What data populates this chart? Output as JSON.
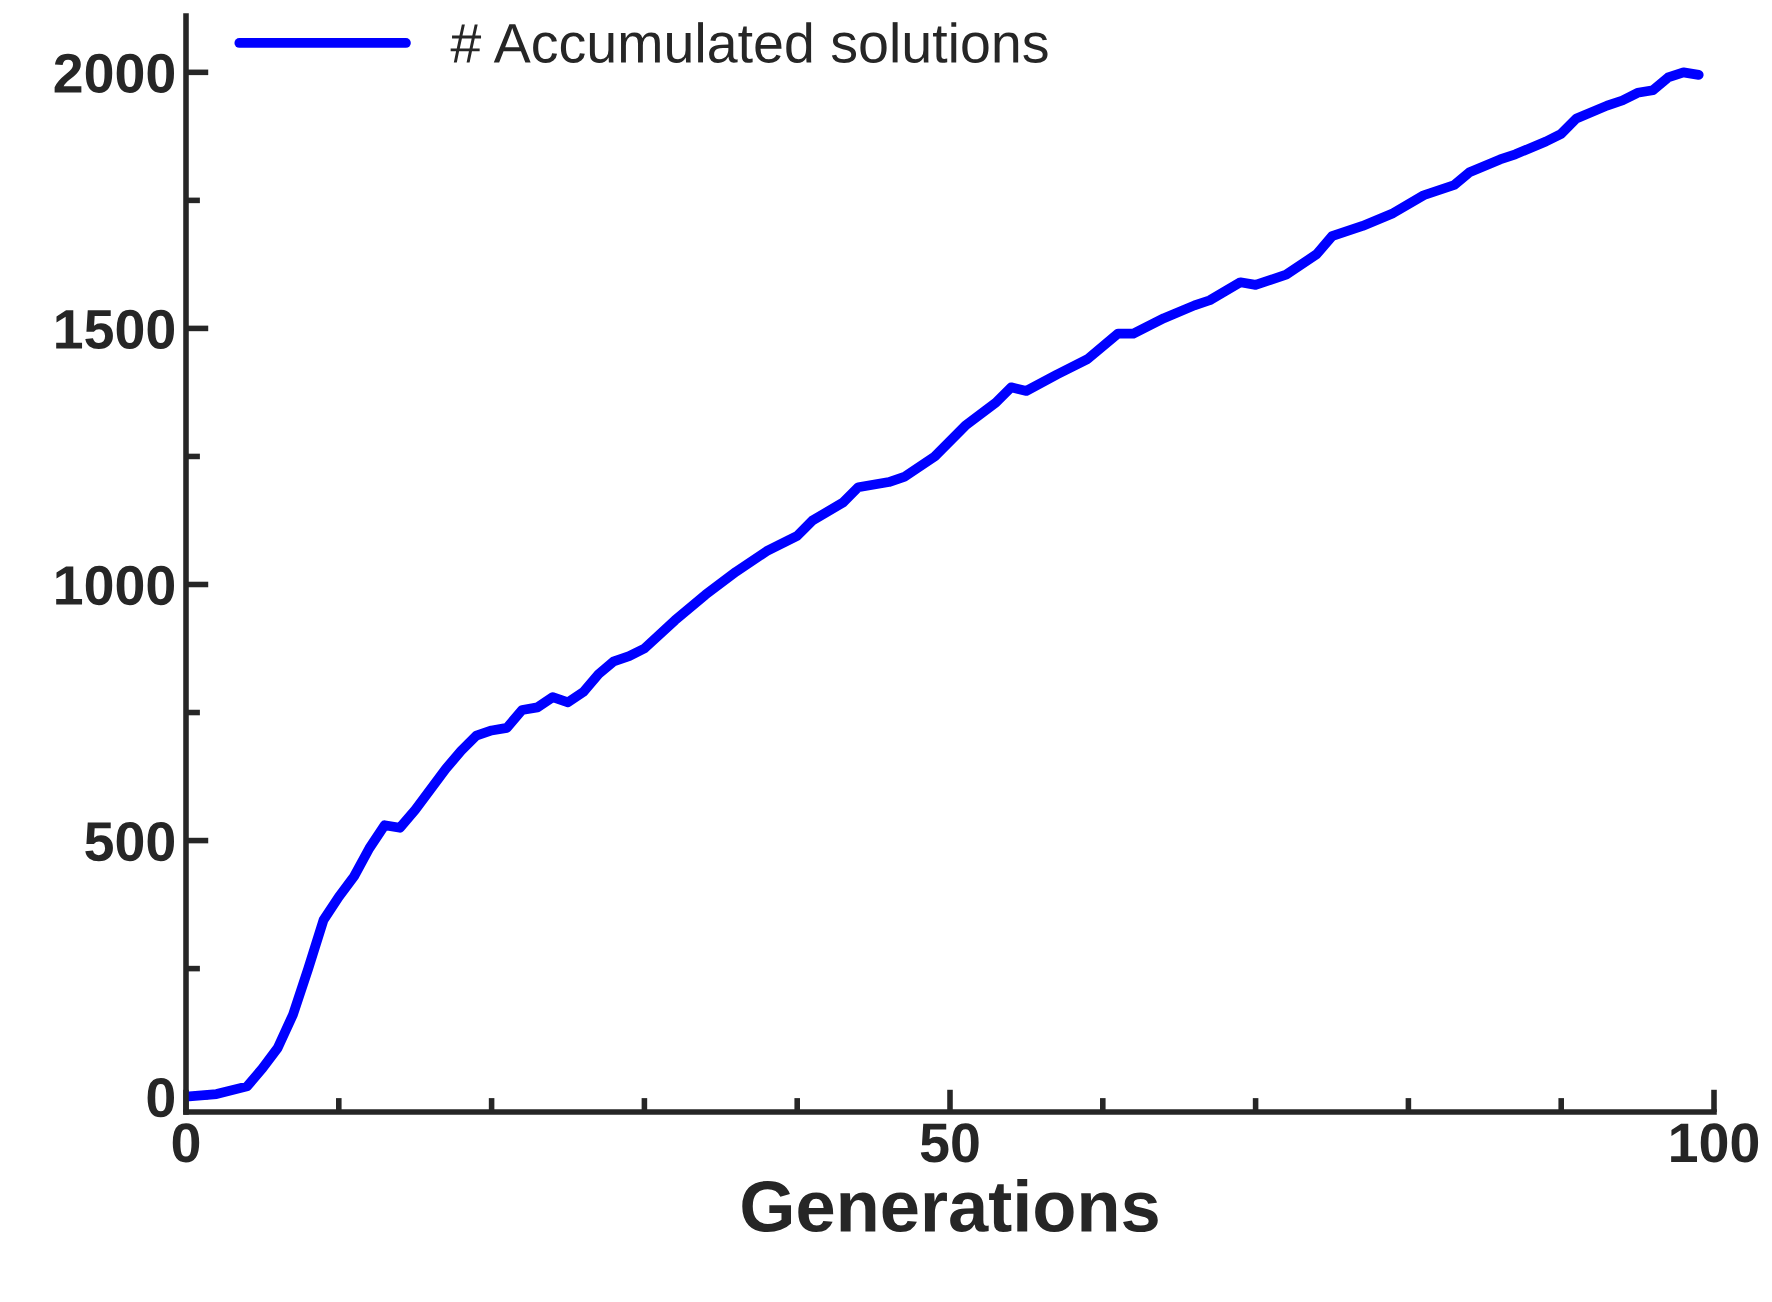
{
  "chart_data": {
    "type": "line",
    "xlabel": "Generations",
    "xlim": [
      0,
      100
    ],
    "xticks": [
      0,
      50,
      100
    ],
    "ylim": [
      -30,
      2110
    ],
    "yticks": [
      0,
      500,
      1000,
      1500,
      2000
    ],
    "legend": "top",
    "grid": false,
    "marker": "none",
    "line_style": "solid",
    "series": [
      {
        "name": "# Accumulated solutions",
        "color": "#0000ff",
        "x": [
          0,
          2,
          4,
          5,
          6,
          7,
          8,
          9,
          10,
          11,
          12,
          13,
          14,
          15,
          16,
          17,
          18,
          19,
          20,
          21,
          22,
          23,
          24,
          25,
          26,
          27,
          28,
          29,
          30,
          32,
          34,
          36,
          38,
          40,
          41,
          43,
          44,
          46,
          47,
          49,
          51,
          53,
          54,
          55,
          57,
          59,
          61,
          62,
          64,
          66,
          67,
          69,
          70,
          72,
          74,
          75,
          77,
          79,
          81,
          83,
          84,
          86,
          87,
          89,
          90,
          91,
          93,
          94,
          95,
          96,
          97,
          98,
          99
        ],
        "values": [
          0,
          5,
          20,
          55,
          95,
          160,
          250,
          345,
          390,
          430,
          485,
          530,
          525,
          560,
          600,
          640,
          675,
          705,
          715,
          720,
          755,
          760,
          780,
          770,
          790,
          825,
          850,
          860,
          875,
          930,
          980,
          1025,
          1065,
          1095,
          1125,
          1160,
          1190,
          1200,
          1210,
          1250,
          1310,
          1355,
          1385,
          1378,
          1410,
          1440,
          1490,
          1490,
          1520,
          1545,
          1555,
          1590,
          1585,
          1605,
          1645,
          1680,
          1700,
          1725,
          1760,
          1780,
          1805,
          1830,
          1840,
          1865,
          1880,
          1910,
          1935,
          1945,
          1960,
          1965,
          1990,
          2000,
          1995
        ]
      }
    ]
  }
}
